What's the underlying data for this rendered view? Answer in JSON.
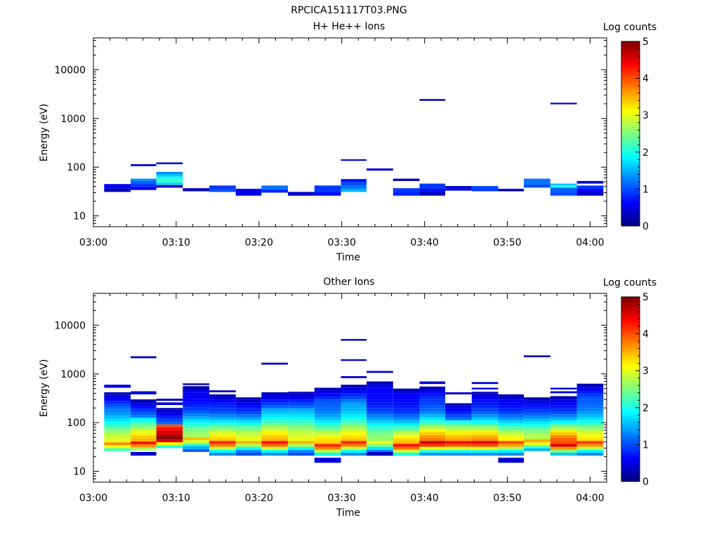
{
  "figure_title": "RPCICA151117T03.PNG",
  "colorscale": [
    "#00007f",
    "#0000ff",
    "#0080ff",
    "#00ffff",
    "#80ff80",
    "#ffff00",
    "#ff8000",
    "#ff0000",
    "#7f0000"
  ],
  "chart_data": [
    {
      "type": "heatmap",
      "title": "H+ He++ Ions",
      "xlabel": "Time",
      "ylabel": "Energy (eV)",
      "y_scale": "log",
      "ylim": [
        6,
        45000
      ],
      "xlim": [
        "03:00",
        "04:02"
      ],
      "x_ticks": [
        "03:00",
        "03:10",
        "03:20",
        "03:30",
        "03:40",
        "03:50",
        "04:00"
      ],
      "y_ticks": [
        "10",
        "100",
        "1000",
        "10000"
      ],
      "colorbar": {
        "label": "Log counts",
        "range": [
          0,
          5
        ],
        "ticks": [
          "0",
          "1",
          "2",
          "3",
          "4",
          "5"
        ]
      },
      "time_bins": [
        {
          "start": "03:01.3",
          "end": "03:04.5",
          "cells": [
            [
              31,
              37,
              0.3
            ],
            [
              37,
              45,
              0.6
            ]
          ]
        },
        {
          "start": "03:04.5",
          "end": "03:07.6",
          "cells": [
            [
              34,
              40,
              0.6
            ],
            [
              40,
              46,
              0.9
            ],
            [
              46,
              52,
              1.1
            ],
            [
              52,
              58,
              1.3
            ],
            [
              105,
              115,
              0.4
            ]
          ]
        },
        {
          "start": "03:07.6",
          "end": "03:10.8",
          "cells": [
            [
              38,
              43,
              0.3
            ],
            [
              43,
              49,
              1.7
            ],
            [
              49,
              56,
              2.2
            ],
            [
              56,
              64,
              2.0
            ],
            [
              64,
              72,
              1.6
            ],
            [
              72,
              80,
              1.3
            ],
            [
              115,
              125,
              0.5
            ]
          ]
        },
        {
          "start": "03:10.8",
          "end": "03:14.0",
          "cells": [
            [
              32,
              37,
              0.3
            ]
          ]
        },
        {
          "start": "03:14.0",
          "end": "03:17.2",
          "cells": [
            [
              31,
              35,
              1.0
            ],
            [
              35,
              42,
              0.9
            ]
          ]
        },
        {
          "start": "03:17.2",
          "end": "03:20.3",
          "cells": [
            [
              26,
              31,
              0.5
            ],
            [
              31,
              36,
              0.6
            ]
          ]
        },
        {
          "start": "03:20.3",
          "end": "03:23.5",
          "cells": [
            [
              30,
              35,
              0.8
            ],
            [
              35,
              42,
              1.2
            ]
          ]
        },
        {
          "start": "03:23.5",
          "end": "03:26.7",
          "cells": [
            [
              26,
              31,
              0.4
            ]
          ]
        },
        {
          "start": "03:26.7",
          "end": "03:29.9",
          "cells": [
            [
              26,
              31,
              0.7
            ],
            [
              31,
              36,
              0.9
            ],
            [
              36,
              42,
              0.9
            ]
          ]
        },
        {
          "start": "03:29.9",
          "end": "03:33.0",
          "cells": [
            [
              31,
              36,
              1.5
            ],
            [
              36,
              42,
              1.2
            ],
            [
              42,
              49,
              1.0
            ],
            [
              49,
              57,
              0.7
            ],
            [
              135,
              145,
              0.5
            ]
          ]
        },
        {
          "start": "03:33.0",
          "end": "03:36.2",
          "cells": [
            [
              85,
              94,
              0.4
            ]
          ]
        },
        {
          "start": "03:36.2",
          "end": "03:39.4",
          "cells": [
            [
              26,
              31,
              0.8
            ],
            [
              31,
              37,
              0.9
            ],
            [
              52,
              58,
              0.3
            ]
          ]
        },
        {
          "start": "03:39.4",
          "end": "03:42.5",
          "cells": [
            [
              26,
              31,
              0.3
            ],
            [
              31,
              37,
              0.7
            ],
            [
              37,
              46,
              0.9
            ],
            [
              2300,
              2500,
              0.3
            ]
          ]
        },
        {
          "start": "03:42.5",
          "end": "03:45.7",
          "cells": [
            [
              33,
              37,
              0.6
            ],
            [
              37,
              41,
              0.3
            ]
          ]
        },
        {
          "start": "03:45.7",
          "end": "03:48.9",
          "cells": [
            [
              32,
              36,
              0.9
            ],
            [
              36,
              41,
              1.0
            ]
          ]
        },
        {
          "start": "03:48.9",
          "end": "03:52.0",
          "cells": [
            [
              32,
              36,
              0.4
            ]
          ]
        },
        {
          "start": "03:52.0",
          "end": "03:55.2",
          "cells": [
            [
              38,
              45,
              1.0
            ],
            [
              45,
              58,
              1.2
            ]
          ]
        },
        {
          "start": "03:55.2",
          "end": "03:58.4",
          "cells": [
            [
              26,
              31,
              1.0
            ],
            [
              31,
              38,
              1.1
            ],
            [
              38,
              43,
              2.0
            ],
            [
              43,
              46,
              1.5
            ],
            [
              1950,
              2100,
              0.4
            ]
          ]
        },
        {
          "start": "03:58.4",
          "end": "04:01.6",
          "cells": [
            [
              26,
              31,
              0.4
            ],
            [
              31,
              36,
              0.6
            ],
            [
              36,
              42,
              0.9
            ],
            [
              46,
              52,
              0.4
            ]
          ]
        }
      ]
    },
    {
      "type": "heatmap",
      "title": "Other Ions",
      "xlabel": "Time",
      "ylabel": "Energy (eV)",
      "y_scale": "log",
      "ylim": [
        6,
        45000
      ],
      "xlim": [
        "03:00",
        "04:02"
      ],
      "x_ticks": [
        "03:00",
        "03:10",
        "03:20",
        "03:30",
        "03:40",
        "03:50",
        "04:00"
      ],
      "y_ticks": [
        "10",
        "100",
        "1000",
        "10000"
      ],
      "colorbar": {
        "label": "Log counts",
        "range": [
          0,
          5
        ],
        "ticks": [
          "0",
          "1",
          "2",
          "3",
          "4",
          "5"
        ]
      },
      "time_bins": [
        {
          "start": "03:01.3",
          "end": "03:04.5",
          "profile": {
            "lo": 26,
            "hi": 420,
            "peak": 40,
            "max": 3.0,
            "base": 1.0
          },
          "cells": [
            [
              520,
              600,
              0.5
            ]
          ]
        },
        {
          "start": "03:04.5",
          "end": "03:07.6",
          "profile": {
            "lo": 27,
            "hi": 300,
            "peak": 40,
            "max": 3.5,
            "base": 1.0
          },
          "cells": [
            [
              21,
              25,
              0.4
            ],
            [
              380,
              440,
              0.4
            ],
            [
              2100,
              2300,
              0.3
            ]
          ]
        },
        {
          "start": "03:07.6",
          "end": "03:10.8",
          "profile": {
            "lo": 30,
            "hi": 200,
            "peak": 52,
            "max": 4.7,
            "base": 1.2
          },
          "cells": [
            [
              230,
              260,
              0.4
            ],
            [
              280,
              310,
              0.3
            ]
          ]
        },
        {
          "start": "03:10.8",
          "end": "03:14.0",
          "profile": {
            "lo": 25,
            "hi": 560,
            "peak": 50,
            "max": 2.7,
            "base": 0.5
          },
          "cells": [
            [
              590,
              640,
              0.4
            ]
          ]
        },
        {
          "start": "03:14.0",
          "end": "03:17.2",
          "profile": {
            "lo": 21,
            "hi": 380,
            "peak": 40,
            "max": 3.4,
            "base": 0.6
          },
          "cells": [
            [
              420,
              460,
              0.4
            ]
          ]
        },
        {
          "start": "03:17.2",
          "end": "03:20.3",
          "profile": {
            "lo": 21,
            "hi": 330,
            "peak": 45,
            "max": 3.0,
            "base": 0.4
          },
          "cells": []
        },
        {
          "start": "03:20.3",
          "end": "03:23.5",
          "profile": {
            "lo": 21,
            "hi": 420,
            "peak": 40,
            "max": 3.5,
            "base": 1.2
          },
          "cells": [
            [
              1550,
              1700,
              0.4
            ]
          ]
        },
        {
          "start": "03:23.5",
          "end": "03:26.7",
          "profile": {
            "lo": 21,
            "hi": 430,
            "peak": 45,
            "max": 3.0,
            "base": 1.2
          },
          "cells": []
        },
        {
          "start": "03:26.7",
          "end": "03:29.9",
          "profile": {
            "lo": 21,
            "hi": 520,
            "peak": 35,
            "max": 3.4,
            "base": 1.0
          },
          "cells": [
            [
              15,
              19,
              0.5
            ]
          ]
        },
        {
          "start": "03:29.9",
          "end": "03:33.0",
          "profile": {
            "lo": 21,
            "hi": 600,
            "peak": 40,
            "max": 3.4,
            "base": 1.3
          },
          "cells": [
            [
              820,
              900,
              0.4
            ],
            [
              1850,
              2000,
              0.4
            ],
            [
              4800,
              5200,
              0.4
            ]
          ]
        },
        {
          "start": "03:33.0",
          "end": "03:36.2",
          "profile": {
            "lo": 21,
            "hi": 700,
            "peak": 45,
            "max": 2.6,
            "base": 0.6
          },
          "cells": [
            [
              21,
              25,
              0.3
            ],
            [
              1050,
              1150,
              0.4
            ]
          ]
        },
        {
          "start": "03:36.2",
          "end": "03:39.4",
          "profile": {
            "lo": 21,
            "hi": 500,
            "peak": 35,
            "max": 3.5,
            "base": 0.6
          },
          "cells": []
        },
        {
          "start": "03:39.4",
          "end": "03:42.5",
          "profile": {
            "lo": 21,
            "hi": 550,
            "peak": 40,
            "max": 3.8,
            "base": 0.8
          },
          "cells": [
            [
              620,
              700,
              0.4
            ]
          ]
        },
        {
          "start": "03:42.5",
          "end": "03:45.7",
          "profile": {
            "lo": 21,
            "hi": 250,
            "peak": 40,
            "max": 3.6,
            "base": 0.8
          },
          "cells": [
            [
              380,
              420,
              0.4
            ]
          ]
        },
        {
          "start": "03:45.7",
          "end": "03:48.9",
          "profile": {
            "lo": 21,
            "hi": 430,
            "peak": 40,
            "max": 3.7,
            "base": 0.6
          },
          "cells": [
            [
              480,
              520,
              0.4
            ],
            [
              620,
              680,
              0.4
            ]
          ]
        },
        {
          "start": "03:48.9",
          "end": "03:52.0",
          "profile": {
            "lo": 21,
            "hi": 380,
            "peak": 40,
            "max": 3.2,
            "base": 0.5
          },
          "cells": [
            [
              15,
              19,
              0.4
            ]
          ]
        },
        {
          "start": "03:52.0",
          "end": "03:55.2",
          "profile": {
            "lo": 26,
            "hi": 330,
            "peak": 45,
            "max": 2.8,
            "base": 0.5
          },
          "cells": [
            [
              2200,
              2400,
              0.3
            ]
          ]
        },
        {
          "start": "03:55.2",
          "end": "03:58.4",
          "profile": {
            "lo": 21,
            "hi": 350,
            "peak": 38,
            "max": 4.0,
            "base": 0.5
          },
          "cells": [
            [
              400,
              440,
              0.4
            ],
            [
              480,
              520,
              0.4
            ]
          ]
        },
        {
          "start": "03:58.4",
          "end": "04:01.6",
          "profile": {
            "lo": 21,
            "hi": 630,
            "peak": 40,
            "max": 3.3,
            "base": 1.0
          },
          "cells": []
        }
      ]
    }
  ]
}
